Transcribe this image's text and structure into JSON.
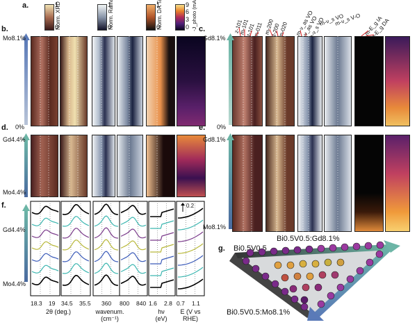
{
  "panels": {
    "a": "a.",
    "b": "b.",
    "c": "c.",
    "d": "d.",
    "e": "e.",
    "f": "f.",
    "g": "g."
  },
  "colorbars": {
    "xrd": {
      "label": "Norm. XRD int.",
      "max": "1",
      "min": "0"
    },
    "raman": {
      "label": "Norm. Raman int.",
      "max": "1",
      "min": "0"
    },
    "tauc": {
      "label": "Norm. DA Tauc",
      "max": "1",
      "min": "0"
    },
    "photo": {
      "label": "-J_photo (mA/cm²)",
      "ticks": [
        "9",
        "6",
        "3",
        "0"
      ]
    }
  },
  "left_axis": {
    "b_top": "Mo8.1%",
    "b_bottom": "0%",
    "d_top": "Gd4.4%",
    "d_bottom": "Mo4.4%",
    "f_top": "Gd4.4%",
    "f_bottom": "Mo4.4%"
  },
  "right_axis": {
    "c_top": "Gd8.1%",
    "c_bottom": "0%",
    "e_top": "Gd8.1%",
    "e_bottom": "Mo8.1%"
  },
  "peak_labels": [
    "z-101",
    "m-101",
    "t-101",
    "m-011",
    "m-200",
    "t-200",
    "m-020",
    "m-ν_as VO",
    "t-ν_as VO",
    "m-ν_s VO",
    "m-ν_s VO",
    "m-ν_s V-O",
    "m-E_g IA",
    "m-E_g DA"
  ],
  "f_axes": [
    {
      "ticks": [
        "18.3",
        "19"
      ],
      "label": "2θ (deg.)"
    },
    {
      "ticks": [
        "34.5",
        "35.5"
      ],
      "label": ""
    },
    {
      "ticks": [
        "360"
      ],
      "label": "wavenum. (cm⁻¹)"
    },
    {
      "ticks": [
        "800",
        "840"
      ],
      "label": ""
    },
    {
      "ticks": [
        "1.6",
        "2.8"
      ],
      "label": "hν (eV)"
    },
    {
      "ticks": [
        "0.7",
        "1.1"
      ],
      "label": "E (V vs RHE)"
    }
  ],
  "scale_bar": "0.2",
  "g": {
    "top_left": "Bi0.5V0.5",
    "top_right": "Bi0.5V0.5:Gd8.1%",
    "bottom": "Bi0.5V0.5:Mo8.1%"
  },
  "colors": {
    "xrd_map": "#3a1a1a",
    "raman_map": "#dde4ea",
    "tauc_map": "#e08a3a",
    "photo_map": "#1a0a30",
    "arrow_teal": "#6cb5a6",
    "arrow_blue": "#5a7ab8"
  }
}
